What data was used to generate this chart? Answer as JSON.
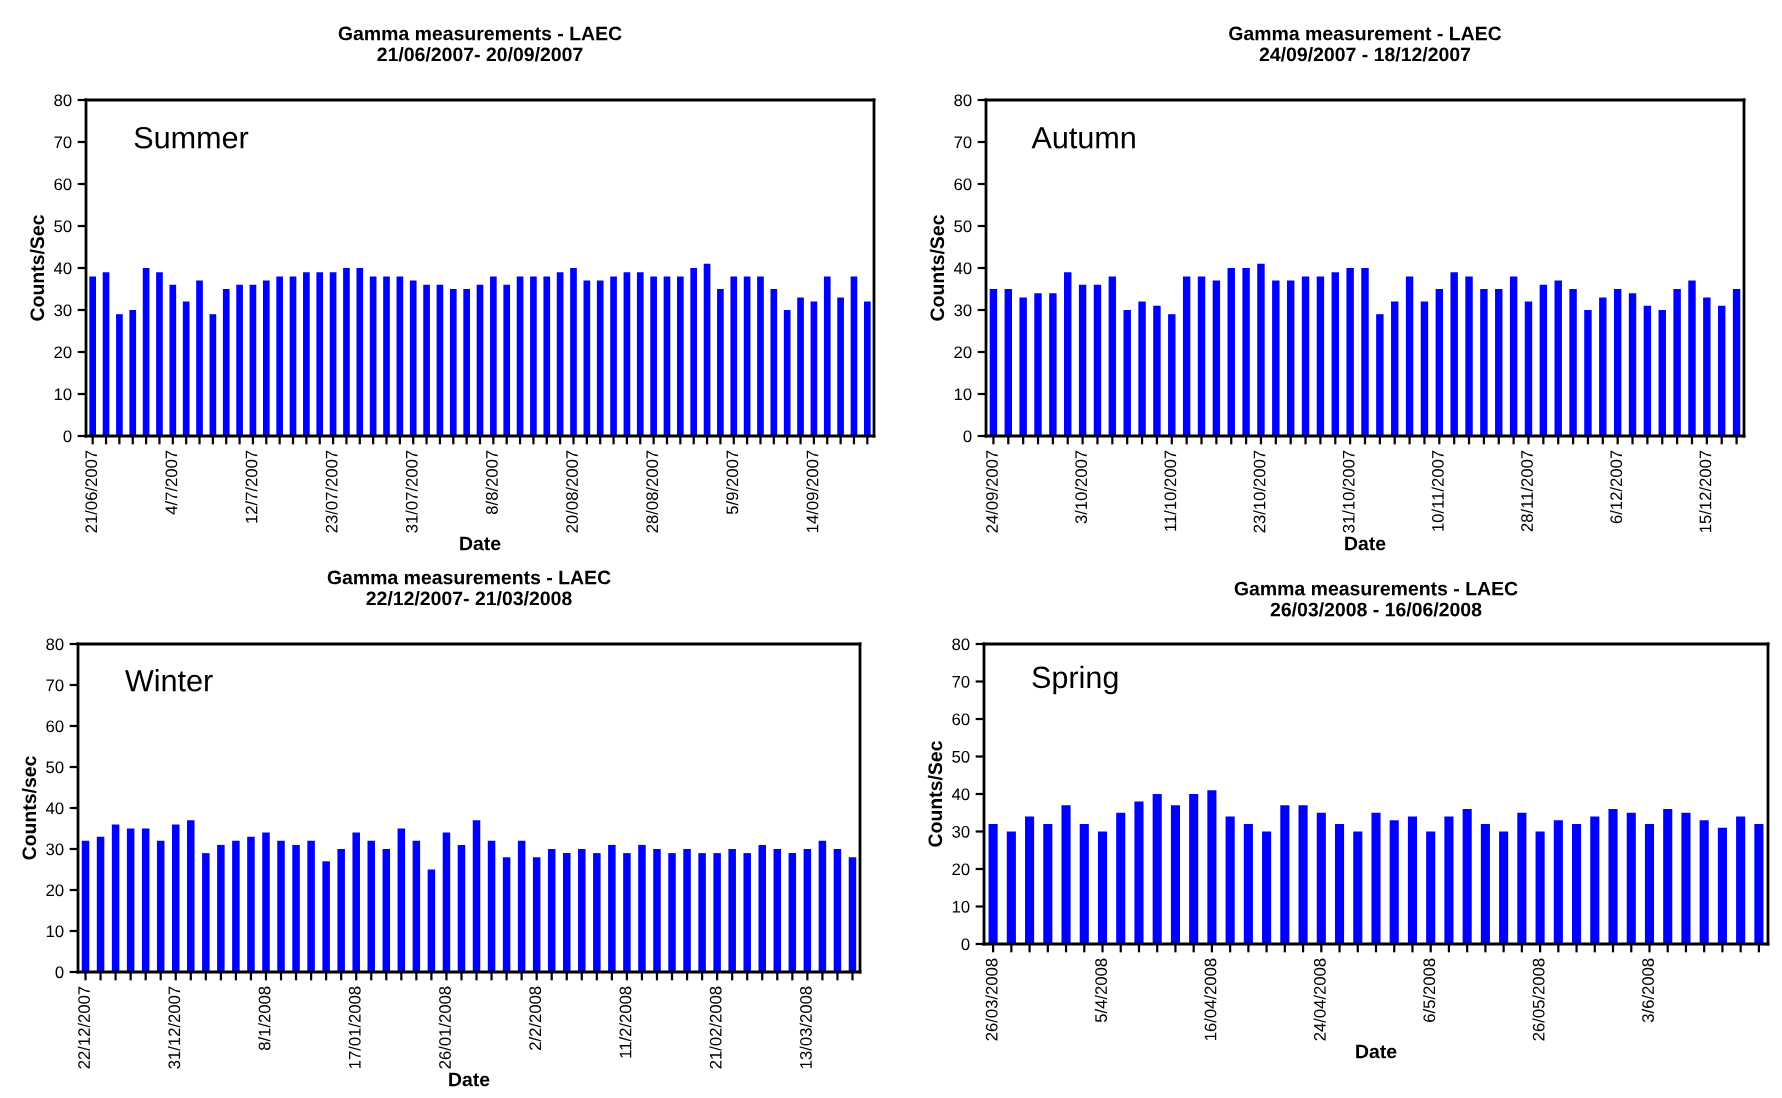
{
  "chart_data": [
    {
      "type": "bar",
      "title": "Gamma measurements - LAEC",
      "subtitle": "21/06/2007- 20/09/2007",
      "xlabel": "Date",
      "ylabel": "Counts/Sec",
      "annotations": [
        "Summer"
      ],
      "color": "#0000ff",
      "ylim": [
        0,
        80
      ],
      "yticks": [
        0,
        10,
        20,
        30,
        40,
        50,
        60,
        70,
        80
      ],
      "grid": false,
      "categories": [
        "21/06/2007",
        null,
        null,
        null,
        null,
        null,
        "4/7/2007",
        null,
        null,
        null,
        null,
        null,
        "12/7/2007",
        null,
        null,
        null,
        null,
        null,
        "23/07/2007",
        null,
        null,
        null,
        null,
        null,
        "31/07/2007",
        null,
        null,
        null,
        null,
        null,
        "8/8/2007",
        null,
        null,
        null,
        null,
        null,
        "20/08/2007",
        null,
        null,
        null,
        null,
        null,
        "28/08/2007",
        null,
        null,
        null,
        null,
        null,
        "5/9/2007",
        null,
        null,
        null,
        null,
        null,
        "14/09/2007",
        null,
        null,
        null,
        null
      ],
      "values": [
        38,
        39,
        29,
        30,
        40,
        39,
        36,
        32,
        37,
        29,
        35,
        36,
        36,
        37,
        38,
        38,
        39,
        39,
        39,
        40,
        40,
        38,
        38,
        38,
        37,
        36,
        36,
        35,
        35,
        36,
        38,
        36,
        38,
        38,
        38,
        39,
        40,
        37,
        37,
        38,
        39,
        39,
        38,
        38,
        38,
        40,
        41,
        35,
        38,
        38,
        38,
        35,
        30,
        33,
        32,
        38,
        33,
        38,
        32
      ]
    },
    {
      "type": "bar",
      "title": "Gamma measurement - LAEC",
      "subtitle": "24/09/2007 - 18/12/2007",
      "xlabel": "Date",
      "ylabel": "Counts/Sec",
      "annotations": [
        "Autumn"
      ],
      "color": "#0000ff",
      "ylim": [
        0,
        80
      ],
      "yticks": [
        0,
        10,
        20,
        30,
        40,
        50,
        60,
        70,
        80
      ],
      "grid": false,
      "categories": [
        "24/09/2007",
        null,
        null,
        null,
        null,
        null,
        "3/10/2007",
        null,
        null,
        null,
        null,
        null,
        "11/10/2007",
        null,
        null,
        null,
        null,
        null,
        "23/10/2007",
        null,
        null,
        null,
        null,
        null,
        "31/10/2007",
        null,
        null,
        null,
        null,
        null,
        "10/11/2007",
        null,
        null,
        null,
        null,
        null,
        "28/11/2007",
        null,
        null,
        null,
        null,
        null,
        "6/12/2007",
        null,
        null,
        null,
        null,
        null,
        "15/12/2007",
        null,
        null
      ],
      "values": [
        35,
        35,
        33,
        34,
        34,
        39,
        36,
        36,
        38,
        30,
        32,
        31,
        29,
        38,
        38,
        37,
        40,
        40,
        41,
        37,
        37,
        38,
        38,
        39,
        40,
        40,
        29,
        32,
        38,
        32,
        35,
        39,
        38,
        35,
        35,
        38,
        32,
        36,
        37,
        35,
        30,
        33,
        35,
        34,
        31,
        30,
        35,
        37,
        33,
        31,
        35
      ]
    },
    {
      "type": "bar",
      "title": "Gamma measurements - LAEC",
      "subtitle": "22/12/2007- 21/03/2008",
      "xlabel": "Date",
      "ylabel": "Counts/sec",
      "annotations": [
        "Winter"
      ],
      "color": "#0000ff",
      "ylim": [
        0,
        80
      ],
      "yticks": [
        0,
        10,
        20,
        30,
        40,
        50,
        60,
        70,
        80
      ],
      "grid": false,
      "categories": [
        "22/12/2007",
        null,
        null,
        null,
        null,
        null,
        "31/12/2007",
        null,
        null,
        null,
        null,
        null,
        "8/1/2008",
        null,
        null,
        null,
        null,
        null,
        "17/01/2008",
        null,
        null,
        null,
        null,
        null,
        "26/01/2008",
        null,
        null,
        null,
        null,
        null,
        "2/2/2008",
        null,
        null,
        null,
        null,
        null,
        "11/2/2008",
        null,
        null,
        null,
        null,
        null,
        "21/02/2008",
        null,
        null,
        null,
        null,
        null,
        "13/03/2008",
        null,
        null,
        null
      ],
      "values": [
        32,
        33,
        36,
        35,
        35,
        32,
        36,
        37,
        29,
        31,
        32,
        33,
        34,
        32,
        31,
        32,
        27,
        30,
        34,
        32,
        30,
        35,
        32,
        25,
        34,
        31,
        37,
        32,
        28,
        32,
        28,
        30,
        29,
        30,
        29,
        31,
        29,
        31,
        30,
        29,
        30,
        29,
        29,
        30,
        29,
        31,
        30,
        29,
        30,
        32,
        30,
        28
      ]
    },
    {
      "type": "bar",
      "title": "Gamma measurements - LAEC",
      "subtitle": "26/03/2008 - 16/06/2008",
      "xlabel": "Date",
      "ylabel": "Counts/Sec",
      "annotations": [
        "Spring"
      ],
      "color": "#0000ff",
      "ylim": [
        0,
        80
      ],
      "yticks": [
        0,
        10,
        20,
        30,
        40,
        50,
        60,
        70,
        80
      ],
      "grid": false,
      "categories": [
        "26/03/2008",
        null,
        null,
        null,
        null,
        null,
        "5/4/2008",
        null,
        null,
        null,
        null,
        null,
        "16/04/2008",
        null,
        null,
        null,
        null,
        null,
        "24/04/2008",
        null,
        null,
        null,
        null,
        null,
        "6/5/2008",
        null,
        null,
        null,
        null,
        null,
        "26/05/2008",
        null,
        null,
        null,
        null,
        null,
        "3/6/2008",
        null,
        null,
        null,
        null,
        null,
        null
      ],
      "values": [
        32,
        30,
        34,
        32,
        37,
        32,
        30,
        35,
        38,
        40,
        37,
        40,
        41,
        34,
        32,
        30,
        37,
        37,
        35,
        32,
        30,
        35,
        33,
        34,
        30,
        34,
        36,
        32,
        30,
        35,
        30,
        33,
        32,
        34,
        36,
        35,
        32,
        36,
        35,
        33,
        31,
        34,
        32
      ]
    }
  ]
}
